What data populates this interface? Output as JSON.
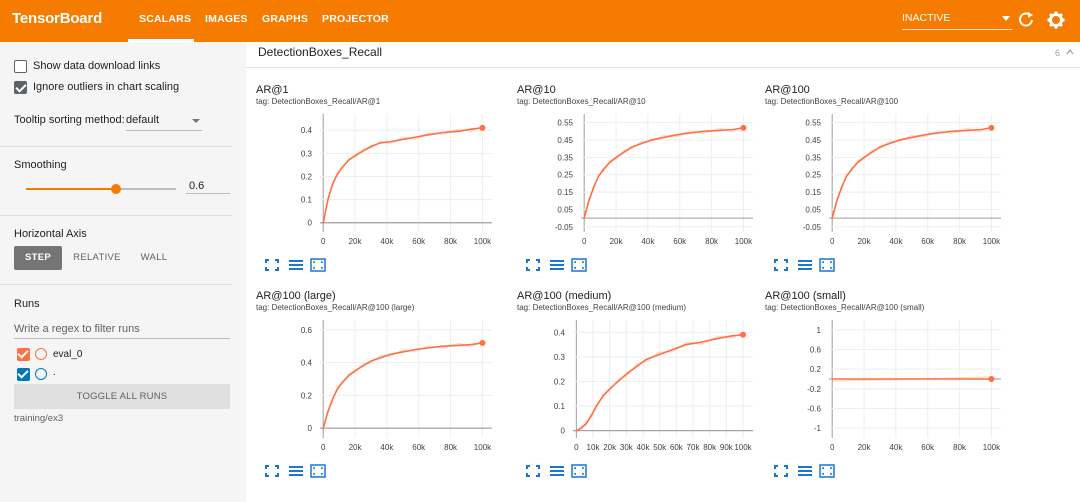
{
  "app": {
    "title": "TensorBoard"
  },
  "tabs": [
    {
      "label": "SCALARS",
      "active": true
    },
    {
      "label": "IMAGES",
      "active": false
    },
    {
      "label": "GRAPHS",
      "active": false
    },
    {
      "label": "PROJECTOR",
      "active": false
    }
  ],
  "toolbar": {
    "status_select": "INACTIVE",
    "refresh_icon": "refresh-icon",
    "settings_icon": "gear-icon"
  },
  "sidebar": {
    "show_download_links": {
      "label": "Show data download links",
      "checked": false
    },
    "ignore_outliers": {
      "label": "Ignore outliers in chart scaling",
      "checked": true
    },
    "tooltip_sorting": {
      "label": "Tooltip sorting method:",
      "value": "default"
    },
    "smoothing": {
      "label": "Smoothing",
      "value": "0.6",
      "fraction": 0.6
    },
    "horizontal_axis": {
      "label": "Horizontal Axis",
      "options": [
        "STEP",
        "RELATIVE",
        "WALL"
      ],
      "selected": "STEP"
    },
    "runs": {
      "label": "Runs",
      "filter_placeholder": "Write a regex to filter runs",
      "items": [
        {
          "name": "eval_0",
          "checked": true,
          "color": "#ff7043"
        },
        {
          "name": ".",
          "checked": true,
          "color": "#0077bb"
        }
      ],
      "toggle_all_label": "TOGGLE ALL RUNS",
      "directory": "training/ex3"
    }
  },
  "main": {
    "group_title": "DetectionBoxes_Recall",
    "group_count": "6",
    "series_color": "#ff7043"
  },
  "charts": [
    {
      "title": "AR@1",
      "tag": "tag: DetectionBoxes_Recall/AR@1",
      "chart_data": {
        "type": "line",
        "x": [
          0,
          3,
          6,
          9,
          12,
          16,
          20,
          25,
          30,
          36,
          42,
          50,
          58,
          66,
          75,
          85,
          93,
          100
        ],
        "y": [
          0,
          0.1,
          0.17,
          0.21,
          0.24,
          0.27,
          0.29,
          0.31,
          0.33,
          0.345,
          0.35,
          0.36,
          0.37,
          0.38,
          0.39,
          0.395,
          0.405,
          0.41
        ],
        "xticks": [
          "0",
          "20k",
          "40k",
          "60k",
          "80k",
          "100k"
        ],
        "yticks": [
          "0",
          "0.1",
          "0.2",
          "0.3",
          "0.4"
        ],
        "xlim": [
          -2,
          106
        ],
        "ylim": [
          -0.04,
          0.47
        ]
      }
    },
    {
      "title": "AR@10",
      "tag": "tag: DetectionBoxes_Recall/AR@10",
      "chart_data": {
        "type": "line",
        "x": [
          0,
          3,
          6,
          9,
          12,
          16,
          20,
          25,
          30,
          36,
          42,
          50,
          58,
          66,
          75,
          85,
          93,
          100
        ],
        "y": [
          0,
          0.1,
          0.18,
          0.24,
          0.28,
          0.32,
          0.35,
          0.38,
          0.41,
          0.43,
          0.45,
          0.465,
          0.48,
          0.49,
          0.5,
          0.505,
          0.51,
          0.52
        ],
        "xticks": [
          "0",
          "20k",
          "40k",
          "60k",
          "80k",
          "100k"
        ],
        "yticks": [
          "-0.05",
          "0.05",
          "0.15",
          "0.25",
          "0.35",
          "0.45",
          "0.55"
        ],
        "xlim": [
          -2,
          106
        ],
        "ylim": [
          -0.08,
          0.6
        ]
      }
    },
    {
      "title": "AR@100",
      "tag": "tag: DetectionBoxes_Recall/AR@100",
      "chart_data": {
        "type": "line",
        "x": [
          0,
          3,
          6,
          9,
          12,
          16,
          20,
          25,
          30,
          36,
          42,
          50,
          58,
          66,
          75,
          85,
          93,
          100
        ],
        "y": [
          0,
          0.1,
          0.18,
          0.24,
          0.28,
          0.32,
          0.35,
          0.38,
          0.41,
          0.43,
          0.45,
          0.465,
          0.48,
          0.49,
          0.5,
          0.505,
          0.51,
          0.52
        ],
        "xticks": [
          "0",
          "20k",
          "40k",
          "60k",
          "80k",
          "100k"
        ],
        "yticks": [
          "-0.05",
          "0.05",
          "0.15",
          "0.25",
          "0.35",
          "0.45",
          "0.55"
        ],
        "xlim": [
          -2,
          106
        ],
        "ylim": [
          -0.08,
          0.6
        ]
      }
    },
    {
      "title": "AR@100 (large)",
      "tag": "tag: DetectionBoxes_Recall/AR@100 (large)",
      "chart_data": {
        "type": "line",
        "x": [
          0,
          3,
          6,
          9,
          12,
          16,
          20,
          25,
          30,
          36,
          42,
          50,
          58,
          66,
          75,
          85,
          93,
          100
        ],
        "y": [
          0,
          0.1,
          0.18,
          0.24,
          0.28,
          0.32,
          0.35,
          0.38,
          0.41,
          0.43,
          0.45,
          0.465,
          0.48,
          0.49,
          0.5,
          0.505,
          0.51,
          0.52
        ],
        "xticks": [
          "0",
          "20k",
          "40k",
          "60k",
          "80k",
          "100k"
        ],
        "yticks": [
          "0",
          "0.2",
          "0.4",
          "0.6"
        ],
        "xlim": [
          -2,
          106
        ],
        "ylim": [
          -0.06,
          0.66
        ]
      }
    },
    {
      "title": "AR@100 (medium)",
      "tag": "tag: DetectionBoxes_Recall/AR@100 (medium)",
      "chart_data": {
        "type": "line",
        "x": [
          0,
          3,
          6,
          9,
          12,
          16,
          20,
          25,
          30,
          36,
          42,
          50,
          58,
          66,
          75,
          85,
          93,
          100
        ],
        "y": [
          0,
          0.01,
          0.03,
          0.06,
          0.1,
          0.14,
          0.17,
          0.2,
          0.23,
          0.26,
          0.29,
          0.31,
          0.33,
          0.35,
          0.36,
          0.375,
          0.385,
          0.39
        ],
        "xticks": [
          "0",
          "10k",
          "20k",
          "30k",
          "40k",
          "50k",
          "60k",
          "70k",
          "80k",
          "90k",
          "100k"
        ],
        "yticks": [
          "0",
          "0.1",
          "0.2",
          "0.3",
          "0.4"
        ],
        "xlim": [
          -2,
          106
        ],
        "ylim": [
          -0.03,
          0.45
        ]
      }
    },
    {
      "title": "AR@100 (small)",
      "tag": "tag: DetectionBoxes_Recall/AR@100 (small)",
      "chart_data": {
        "type": "line",
        "x": [
          0,
          100
        ],
        "y": [
          0,
          0
        ],
        "xticks": [
          "0",
          "20k",
          "40k",
          "60k",
          "80k",
          "100k"
        ],
        "yticks": [
          "-1",
          "-0.6",
          "-0.2",
          "0.2",
          "0.6",
          "1"
        ],
        "xlim": [
          -2,
          106
        ],
        "ylim": [
          -1.2,
          1.2
        ]
      }
    }
  ]
}
